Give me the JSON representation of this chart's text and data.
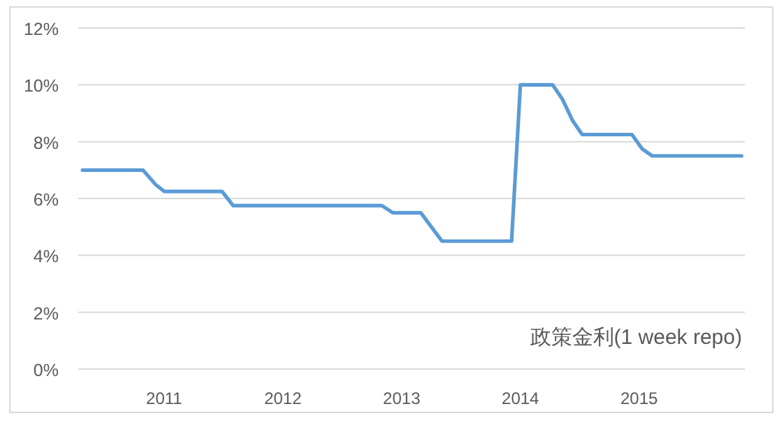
{
  "chart_data": {
    "type": "line",
    "annotations": [
      "政策金利(1 week repo)"
    ],
    "series": [
      {
        "color": "#5b9bd5",
        "x": [
          "2010-04-25",
          "2010-10-28",
          "2010-12-05",
          "2011-01-01",
          "2011-06-28",
          "2011-08-01",
          "2012-11-01",
          "2012-12-05",
          "2013-03-01",
          "2013-05-05",
          "2013-12-05",
          "2014-01-01",
          "2014-04-10",
          "2014-05-10",
          "2014-06-10",
          "2014-07-10",
          "2014-12-10",
          "2015-01-10",
          "2015-02-10",
          "2015-11-12"
        ],
        "values": [
          7.0,
          7.0,
          6.5,
          6.25,
          6.25,
          5.75,
          5.75,
          5.5,
          5.5,
          4.5,
          4.5,
          10.0,
          10.0,
          9.5,
          8.75,
          8.25,
          8.25,
          7.75,
          7.5,
          7.5
        ]
      }
    ],
    "xlim": [
      "2010-04-12",
      "2015-11-22"
    ],
    "xticks": [
      "2011",
      "2012",
      "2013",
      "2014",
      "2015"
    ],
    "ylim": [
      0,
      12
    ],
    "yticks": [
      {
        "value": 0,
        "label": "0%"
      },
      {
        "value": 2,
        "label": "2%"
      },
      {
        "value": 4,
        "label": "4%"
      },
      {
        "value": 6,
        "label": "6%"
      },
      {
        "value": 8,
        "label": "8%"
      },
      {
        "value": 10,
        "label": "10%"
      },
      {
        "value": 12,
        "label": "12%"
      }
    ],
    "grid": "y",
    "line_style": "solid",
    "marker": "none"
  }
}
